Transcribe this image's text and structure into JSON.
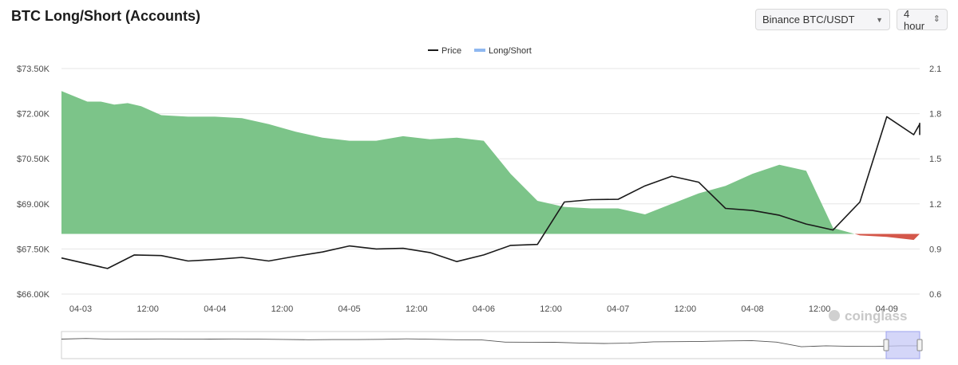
{
  "header": {
    "title": "BTC Long/Short (Accounts)",
    "exchange_select": "Binance BTC/USDT",
    "interval_select": "4 hour"
  },
  "watermark": "coinglass",
  "colors": {
    "price_line": "#1a1a1a",
    "ratio_positive": "#7cc489",
    "ratio_negative": "#d4574a",
    "legend_ratio": "#8fb8f0",
    "navigator_handle": "#c5c8f5"
  },
  "chart_data": {
    "type": "area",
    "title": "BTC Long/Short (Accounts)",
    "legend": [
      "Price",
      "Long/Short"
    ],
    "legend_position": "top-center",
    "x_tick_labels": [
      "04-03",
      "12:00",
      "04-04",
      "12:00",
      "04-05",
      "12:00",
      "04-06",
      "12:00",
      "04-07",
      "12:00",
      "04-08",
      "12:00",
      "04-09"
    ],
    "y_left": {
      "label": "Price",
      "ticks": [
        "$66.00K",
        "$67.50K",
        "$69.00K",
        "$70.50K",
        "$72.00K",
        "$73.50K"
      ],
      "range": [
        66000,
        73500
      ]
    },
    "y_right": {
      "label": "Long/Short",
      "ticks": [
        "0.6",
        "0.9",
        "1.2",
        "1.5",
        "1.8",
        "2.1"
      ],
      "range": [
        0.6,
        2.1
      ]
    },
    "baseline": 1.0,
    "grid": true,
    "series": [
      {
        "name": "Price",
        "axis": "left",
        "x": [
          0,
          0.2,
          0.4,
          0.6,
          0.8,
          1,
          1.2,
          1.4,
          1.6,
          1.8,
          2,
          2.2,
          2.4,
          2.6,
          2.8,
          3,
          3.2,
          3.4,
          3.6,
          3.8,
          4,
          4.2,
          4.4,
          4.6,
          4.8,
          5,
          5.2,
          5.4,
          5.6,
          5.8,
          6,
          6.2,
          6.4,
          6.6,
          6.8,
          6.96
        ],
        "values": [
          67200,
          66850,
          67300,
          67280,
          67100,
          67150,
          67220,
          67100,
          67260,
          67400,
          67600,
          67500,
          67520,
          67380,
          67080,
          67300,
          67620,
          67650,
          69060,
          69140,
          69150,
          69600,
          69920,
          69720,
          68850,
          68780,
          68620,
          68330,
          68130,
          69060,
          71900,
          71300,
          71650,
          71680,
          71300,
          71290
        ]
      },
      {
        "name": "Long/Short",
        "axis": "right",
        "x": [
          0,
          0.05,
          0.15,
          0.25,
          0.35,
          0.45,
          0.6,
          0.8,
          1,
          1.2,
          1.4,
          1.6,
          1.8,
          2,
          2.2,
          2.4,
          2.6,
          2.8,
          3,
          3.2,
          3.4,
          3.6,
          3.8,
          4,
          4.2,
          4.4,
          4.6,
          4.8,
          5,
          5.2,
          5.4,
          5.6,
          5.8,
          6,
          6.2,
          6.4,
          6.6,
          6.8,
          6.96
        ],
        "values": [
          1.95,
          1.88,
          1.88,
          1.86,
          1.87,
          1.85,
          1.79,
          1.78,
          1.78,
          1.77,
          1.73,
          1.68,
          1.64,
          1.62,
          1.62,
          1.65,
          1.63,
          1.64,
          1.62,
          1.4,
          1.22,
          1.18,
          1.17,
          1.17,
          1.13,
          1.2,
          1.27,
          1.32,
          1.4,
          1.46,
          1.42,
          1.04,
          0.99,
          0.98,
          0.96,
          1.0,
          0.96,
          0.97,
          1.02
        ]
      }
    ]
  }
}
